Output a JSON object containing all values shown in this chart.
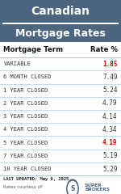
{
  "title1": "Canadian",
  "title2": "Mortgage Rates",
  "header_bg": "#4d6680",
  "table_bg": "#ffffff",
  "row_divider_color": "#aaccdd",
  "col_header_bg": "#ffffff",
  "col_header": [
    "Mortgage Term",
    "Rate %"
  ],
  "rows": [
    [
      "VARIABLE",
      "1.85",
      true
    ],
    [
      "6 MONTH CLOSED",
      "7.49",
      false
    ],
    [
      "1 YEAR CLOSED",
      "5.24",
      false
    ],
    [
      "2 YEAR CLOSED",
      "4.79",
      false
    ],
    [
      "3 YEAR CLOSED",
      "4.14",
      false
    ],
    [
      "4 YEAR CLOSED",
      "4.34",
      false
    ],
    [
      "5 YEAR CLOSED",
      "4.19",
      true
    ],
    [
      "7 YEAR CLOSED",
      "5.19",
      false
    ],
    [
      "10 YEAR CLOSED",
      "5.29",
      false
    ]
  ],
  "red_color": "#cc0000",
  "black_color": "#111111",
  "dark_color": "#222222",
  "gray_color": "#555555",
  "footer_text": "LAST UPDATED: May 9, 2025",
  "footer_sub": "Rates courtesy of",
  "title_color": "#ffffff",
  "col_header_color": "#111111",
  "row_font_color": "#333333",
  "white_rule_color": "#ffffff",
  "border_color": "#aabbcc"
}
